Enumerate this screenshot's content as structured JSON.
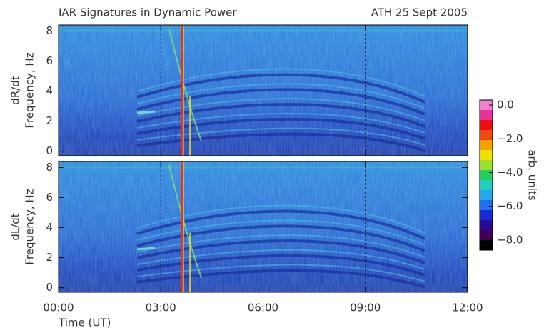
{
  "chart_data": [
    {
      "type": "heatmap",
      "title": "IAR Signatures in Dynamic Power",
      "subtitle": "ATH 25 Sept 2005",
      "ylabel": [
        "dR/dt",
        "Frequency, Hz"
      ],
      "xlim": [
        0,
        12
      ],
      "ylim": [
        -0.3,
        8.4
      ],
      "yticks": [
        0,
        2,
        4,
        6,
        8
      ],
      "grid_x": [
        3,
        6,
        9
      ]
    },
    {
      "type": "heatmap",
      "ylabel": [
        "dL/dt",
        "Frequency, Hz"
      ],
      "xlabel": "Time (UT)",
      "xlim": [
        0,
        12
      ],
      "ylim": [
        -0.3,
        8.4
      ],
      "yticks": [
        0,
        2,
        4,
        6,
        8
      ],
      "xticks": [
        {
          "value": 0,
          "label": "00:00"
        },
        {
          "value": 3,
          "label": "03:00"
        },
        {
          "value": 6,
          "label": "06:00"
        },
        {
          "value": 9,
          "label": "09:00"
        },
        {
          "value": 12,
          "label": "12:00"
        }
      ],
      "grid_x": [
        3,
        6,
        9
      ],
      "colorbar": {
        "label": "arb. units",
        "lim": [
          -8.6,
          0.3
        ],
        "ticks": [
          {
            "value": 0,
            "label": "0.0"
          },
          {
            "value": -2,
            "label": "−2.0"
          },
          {
            "value": -4,
            "label": "−4.0"
          },
          {
            "value": -6,
            "label": "−6.0"
          },
          {
            "value": -8,
            "label": "−8.0"
          }
        ],
        "colors": [
          "#f27fd0",
          "#e8329b",
          "#ee1010",
          "#f04a10",
          "#f5a000",
          "#f0e000",
          "#9ee030",
          "#22d060",
          "#1fd0c0",
          "#25a8e8",
          "#1f6ff0",
          "#1a28d0",
          "#2a0a90",
          "#40005a",
          "#000000"
        ]
      }
    }
  ]
}
